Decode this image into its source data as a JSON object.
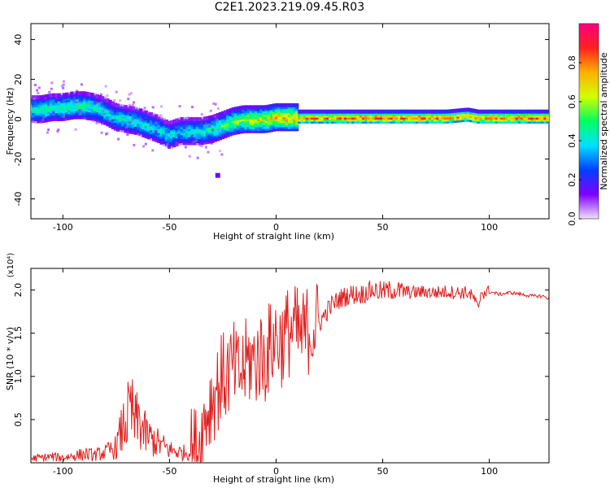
{
  "figure": {
    "title": "C2E1.2023.219.09.45.R03"
  },
  "chart_data": [
    {
      "type": "heatmap",
      "xlabel": "Height of straight line (km)",
      "ylabel": "Frequency (Hz)",
      "xlim": [
        -115,
        128
      ],
      "ylim": [
        -50,
        48
      ],
      "x_ticks": [
        -100,
        -50,
        0,
        50,
        100
      ],
      "y_ticks": [
        -40,
        -20,
        0,
        20,
        40
      ],
      "grid": false,
      "colorbar": {
        "label": "Normalized spectral amplitude",
        "range": [
          0,
          1
        ],
        "ticks": [
          "0.0",
          "0.2",
          "0.4",
          "0.6",
          "0.8"
        ],
        "colors": [
          "#f0e0ff",
          "#8000ff",
          "#0040ff",
          "#00e0ff",
          "#00ff60",
          "#d0ff00",
          "#ffb000",
          "#ff2020",
          "#ff0080"
        ]
      },
      "ridge": {
        "x": [
          -114,
          -110,
          -105,
          -100,
          -95,
          -90,
          -85,
          -80,
          -75,
          -70,
          -65,
          -60,
          -55,
          -50,
          -45,
          -40,
          -35,
          -30,
          -25,
          -20,
          -15,
          -10,
          -5,
          0,
          5,
          10,
          20,
          40,
          60,
          80,
          90,
          95,
          100,
          128
        ],
        "y": [
          5,
          5,
          6,
          6,
          7,
          7,
          6,
          4,
          1,
          0,
          -1,
          -3,
          -5,
          -8,
          -6,
          -6,
          -6,
          -5,
          -3,
          -1,
          0,
          0,
          0,
          1,
          1,
          1,
          1,
          1,
          1,
          1,
          2,
          1,
          1,
          1
        ],
        "amplitude": [
          0.45,
          0.5,
          0.5,
          0.5,
          0.5,
          0.5,
          0.5,
          0.45,
          0.45,
          0.45,
          0.45,
          0.45,
          0.45,
          0.45,
          0.4,
          0.45,
          0.45,
          0.5,
          0.55,
          0.6,
          0.65,
          0.7,
          0.7,
          0.75,
          0.8,
          0.8,
          0.85,
          0.9,
          0.9,
          0.9,
          0.8,
          0.85,
          0.9,
          0.9
        ]
      }
    },
    {
      "type": "line",
      "xlabel": "Height of straight line (km)",
      "ylabel": "SNR (10 * v/v)",
      "y_multiplier": "(x10⁴)",
      "xlim": [
        -115,
        128
      ],
      "ylim": [
        0,
        2.25
      ],
      "x_ticks": [
        -100,
        -50,
        0,
        50,
        100
      ],
      "y_ticks": [
        "0.5",
        "1.0",
        "1.5",
        "2.0"
      ],
      "grid": false,
      "line_color": "#e02020",
      "series": [
        {
          "x": [
            -115,
            -110,
            -105,
            -100,
            -95,
            -90,
            -85,
            -80,
            -75,
            -72,
            -70,
            -68,
            -66,
            -64,
            -62,
            -60,
            -55,
            -50,
            -45,
            -40,
            -37,
            -35,
            -33,
            -30,
            -28,
            -26,
            -24,
            -22,
            -20,
            -18,
            -15,
            -12,
            -10,
            -8,
            -5,
            -3,
            0,
            3,
            5,
            8,
            10,
            12,
            15,
            20,
            25,
            30,
            35,
            40,
            45,
            50,
            55,
            60,
            65,
            70,
            75,
            80,
            85,
            90,
            93,
            95,
            96,
            98,
            100,
            105,
            110,
            115,
            120,
            125,
            128
          ],
          "y": [
            0.05,
            0.06,
            0.07,
            0.06,
            0.08,
            0.1,
            0.09,
            0.12,
            0.18,
            0.4,
            0.5,
            0.6,
            0.45,
            0.5,
            0.35,
            0.3,
            0.22,
            0.15,
            0.12,
            0.12,
            0.15,
            0.3,
            0.55,
            0.75,
            0.85,
            0.95,
            1.0,
            1.05,
            1.1,
            1.0,
            1.1,
            1.2,
            1.15,
            1.25,
            1.2,
            1.35,
            1.45,
            1.4,
            1.5,
            1.55,
            1.5,
            1.45,
            1.55,
            1.6,
            1.8,
            1.9,
            1.95,
            1.95,
            2.0,
            1.98,
            2.0,
            1.98,
            1.97,
            1.98,
            1.97,
            1.98,
            1.97,
            1.97,
            1.9,
            1.75,
            1.98,
            1.97,
            1.98,
            1.95,
            1.97,
            1.95,
            1.93,
            1.93,
            1.9
          ]
        }
      ]
    }
  ]
}
